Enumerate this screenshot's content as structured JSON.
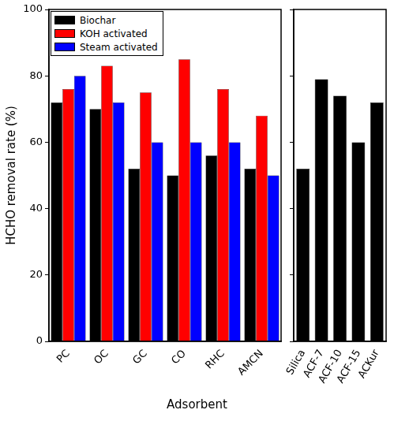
{
  "chart_data": [
    {
      "type": "bar",
      "y_label": "HCHO removal rate (%)",
      "x_label": "Adsorbent",
      "categories": [
        "PC",
        "OC",
        "GC",
        "CO",
        "RHC",
        "AMCN"
      ],
      "series": [
        {
          "name": "Biochar",
          "color": "#000000",
          "values": [
            72,
            70,
            52,
            50,
            56,
            52
          ]
        },
        {
          "name": "KOH activated",
          "color": "#ff0000",
          "values": [
            76,
            83,
            75,
            85,
            76,
            68
          ]
        },
        {
          "name": "Steam activated",
          "color": "#0000ff",
          "values": [
            80,
            72,
            60,
            60,
            60,
            50
          ]
        }
      ],
      "ylim": [
        0,
        100
      ],
      "yticks": [
        0,
        20,
        40,
        60,
        80,
        100
      ],
      "grid": false,
      "legend": "upper left"
    },
    {
      "type": "bar",
      "categories": [
        "Silica",
        "ACF-7",
        "ACF-10",
        "ACF-15",
        "ACKur"
      ],
      "values": [
        52,
        79,
        74,
        60,
        72
      ],
      "color": "#000000",
      "ylim": [
        0,
        100
      ],
      "yticks": [
        0,
        20,
        40,
        60,
        80,
        100
      ],
      "grid": false,
      "tick_labels": "x"
    }
  ]
}
